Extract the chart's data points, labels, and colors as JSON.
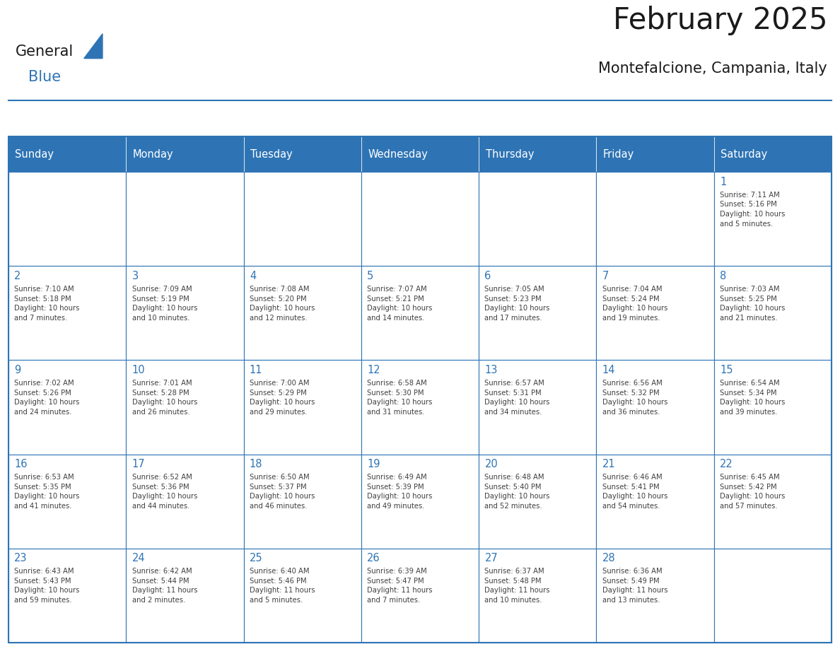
{
  "title": "February 2025",
  "subtitle": "Montefalcione, Campania, Italy",
  "header_bg": "#2E74B5",
  "header_text_color": "#FFFFFF",
  "cell_bg": "#FFFFFF",
  "border_color": "#2E74B5",
  "day_number_color": "#2E74B5",
  "info_text_color": "#404040",
  "title_color": "#1a1a1a",
  "days_of_week": [
    "Sunday",
    "Monday",
    "Tuesday",
    "Wednesday",
    "Thursday",
    "Friday",
    "Saturday"
  ],
  "weeks": [
    [
      {
        "day": null,
        "info": ""
      },
      {
        "day": null,
        "info": ""
      },
      {
        "day": null,
        "info": ""
      },
      {
        "day": null,
        "info": ""
      },
      {
        "day": null,
        "info": ""
      },
      {
        "day": null,
        "info": ""
      },
      {
        "day": 1,
        "info": "Sunrise: 7:11 AM\nSunset: 5:16 PM\nDaylight: 10 hours\nand 5 minutes."
      }
    ],
    [
      {
        "day": 2,
        "info": "Sunrise: 7:10 AM\nSunset: 5:18 PM\nDaylight: 10 hours\nand 7 minutes."
      },
      {
        "day": 3,
        "info": "Sunrise: 7:09 AM\nSunset: 5:19 PM\nDaylight: 10 hours\nand 10 minutes."
      },
      {
        "day": 4,
        "info": "Sunrise: 7:08 AM\nSunset: 5:20 PM\nDaylight: 10 hours\nand 12 minutes."
      },
      {
        "day": 5,
        "info": "Sunrise: 7:07 AM\nSunset: 5:21 PM\nDaylight: 10 hours\nand 14 minutes."
      },
      {
        "day": 6,
        "info": "Sunrise: 7:05 AM\nSunset: 5:23 PM\nDaylight: 10 hours\nand 17 minutes."
      },
      {
        "day": 7,
        "info": "Sunrise: 7:04 AM\nSunset: 5:24 PM\nDaylight: 10 hours\nand 19 minutes."
      },
      {
        "day": 8,
        "info": "Sunrise: 7:03 AM\nSunset: 5:25 PM\nDaylight: 10 hours\nand 21 minutes."
      }
    ],
    [
      {
        "day": 9,
        "info": "Sunrise: 7:02 AM\nSunset: 5:26 PM\nDaylight: 10 hours\nand 24 minutes."
      },
      {
        "day": 10,
        "info": "Sunrise: 7:01 AM\nSunset: 5:28 PM\nDaylight: 10 hours\nand 26 minutes."
      },
      {
        "day": 11,
        "info": "Sunrise: 7:00 AM\nSunset: 5:29 PM\nDaylight: 10 hours\nand 29 minutes."
      },
      {
        "day": 12,
        "info": "Sunrise: 6:58 AM\nSunset: 5:30 PM\nDaylight: 10 hours\nand 31 minutes."
      },
      {
        "day": 13,
        "info": "Sunrise: 6:57 AM\nSunset: 5:31 PM\nDaylight: 10 hours\nand 34 minutes."
      },
      {
        "day": 14,
        "info": "Sunrise: 6:56 AM\nSunset: 5:32 PM\nDaylight: 10 hours\nand 36 minutes."
      },
      {
        "day": 15,
        "info": "Sunrise: 6:54 AM\nSunset: 5:34 PM\nDaylight: 10 hours\nand 39 minutes."
      }
    ],
    [
      {
        "day": 16,
        "info": "Sunrise: 6:53 AM\nSunset: 5:35 PM\nDaylight: 10 hours\nand 41 minutes."
      },
      {
        "day": 17,
        "info": "Sunrise: 6:52 AM\nSunset: 5:36 PM\nDaylight: 10 hours\nand 44 minutes."
      },
      {
        "day": 18,
        "info": "Sunrise: 6:50 AM\nSunset: 5:37 PM\nDaylight: 10 hours\nand 46 minutes."
      },
      {
        "day": 19,
        "info": "Sunrise: 6:49 AM\nSunset: 5:39 PM\nDaylight: 10 hours\nand 49 minutes."
      },
      {
        "day": 20,
        "info": "Sunrise: 6:48 AM\nSunset: 5:40 PM\nDaylight: 10 hours\nand 52 minutes."
      },
      {
        "day": 21,
        "info": "Sunrise: 6:46 AM\nSunset: 5:41 PM\nDaylight: 10 hours\nand 54 minutes."
      },
      {
        "day": 22,
        "info": "Sunrise: 6:45 AM\nSunset: 5:42 PM\nDaylight: 10 hours\nand 57 minutes."
      }
    ],
    [
      {
        "day": 23,
        "info": "Sunrise: 6:43 AM\nSunset: 5:43 PM\nDaylight: 10 hours\nand 59 minutes."
      },
      {
        "day": 24,
        "info": "Sunrise: 6:42 AM\nSunset: 5:44 PM\nDaylight: 11 hours\nand 2 minutes."
      },
      {
        "day": 25,
        "info": "Sunrise: 6:40 AM\nSunset: 5:46 PM\nDaylight: 11 hours\nand 5 minutes."
      },
      {
        "day": 26,
        "info": "Sunrise: 6:39 AM\nSunset: 5:47 PM\nDaylight: 11 hours\nand 7 minutes."
      },
      {
        "day": 27,
        "info": "Sunrise: 6:37 AM\nSunset: 5:48 PM\nDaylight: 11 hours\nand 10 minutes."
      },
      {
        "day": 28,
        "info": "Sunrise: 6:36 AM\nSunset: 5:49 PM\nDaylight: 11 hours\nand 13 minutes."
      },
      {
        "day": null,
        "info": ""
      }
    ]
  ],
  "logo_general_color": "#1a1a1a",
  "logo_blue_color": "#2E74B5"
}
